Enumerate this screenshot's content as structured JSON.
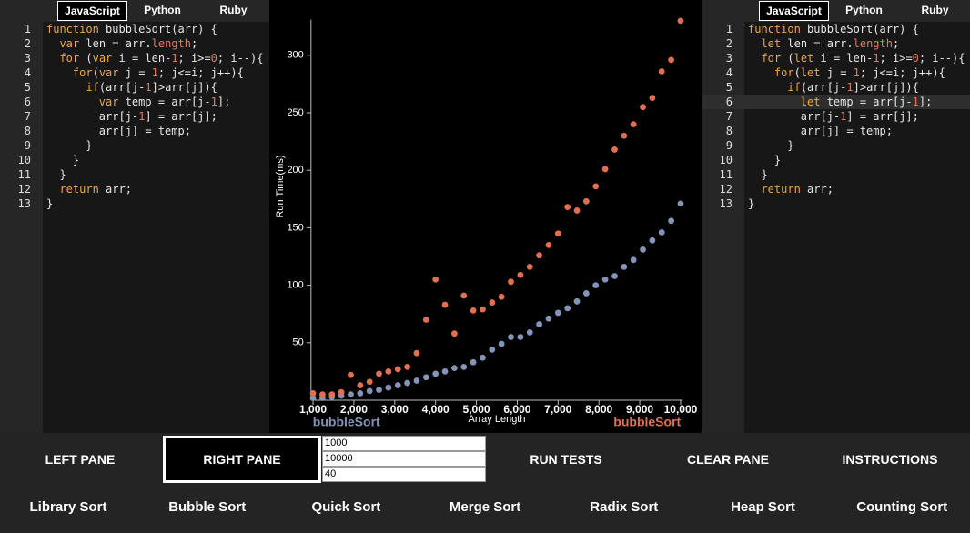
{
  "left_pane": {
    "tabs": [
      "JavaScript",
      "Python",
      "Ruby"
    ],
    "line_numbers": [
      1,
      2,
      3,
      4,
      5,
      6,
      7,
      8,
      9,
      10,
      11,
      12,
      13
    ],
    "code": [
      "function bubbleSort(arr) {",
      "  var len = arr.length;",
      "  for (var i = len-1; i>=0; i--){",
      "    for(var j = 1; j<=i; j++){",
      "      if(arr[j-1]>arr[j]){",
      "        var temp = arr[j-1];",
      "        arr[j-1] = arr[j];",
      "        arr[j] = temp;",
      "      }",
      "    }",
      "  }",
      "  return arr;",
      "}"
    ]
  },
  "chart_data": {
    "type": "scatter",
    "xlabel": "Array Length",
    "ylabel": "Run Time(ms)",
    "x": [
      1000,
      1231,
      1462,
      1692,
      1923,
      2154,
      2385,
      2615,
      2846,
      3077,
      3308,
      3538,
      3769,
      4000,
      4231,
      4462,
      4692,
      4923,
      5154,
      5385,
      5615,
      5846,
      6077,
      6308,
      6538,
      6769,
      7000,
      7231,
      7462,
      7692,
      7923,
      8154,
      8385,
      8615,
      8846,
      9077,
      9308,
      9538,
      9769,
      10000
    ],
    "series": [
      {
        "name": "bubbleSort",
        "color": "#8394b8",
        "values": [
          2,
          2,
          3,
          4,
          5,
          6,
          8,
          9,
          11,
          13,
          15,
          17,
          20,
          23,
          25,
          28,
          29,
          33,
          37,
          44,
          49,
          55,
          55,
          59,
          66,
          71,
          76,
          80,
          86,
          93,
          100,
          105,
          108,
          116,
          122,
          131,
          139,
          146,
          156,
          171
        ]
      },
      {
        "name": "bubbleSort",
        "color": "#e0704f",
        "values": [
          6,
          5,
          5,
          7,
          22,
          13,
          16,
          23,
          25,
          27,
          29,
          41,
          70,
          105,
          83,
          58,
          91,
          78,
          79,
          85,
          90,
          103,
          109,
          116,
          126,
          135,
          145,
          168,
          165,
          173,
          186,
          201,
          218,
          230,
          240,
          255,
          263,
          286,
          296,
          330
        ]
      }
    ],
    "xlim": [
      950,
      10050
    ],
    "ylim": [
      0,
      331
    ],
    "xticks": [
      {
        "value": 1000,
        "label": "1,000"
      },
      {
        "value": 2000,
        "label": "2,000"
      },
      {
        "value": 3000,
        "label": "3,000"
      },
      {
        "value": 4000,
        "label": "4,000"
      },
      {
        "value": 5000,
        "label": "5,000"
      },
      {
        "value": 6000,
        "label": "6,000"
      },
      {
        "value": 7000,
        "label": "7,000"
      },
      {
        "value": 8000,
        "label": "8,000"
      },
      {
        "value": 9000,
        "label": "9,000"
      },
      {
        "value": 10000,
        "label": "10,000"
      }
    ],
    "yticks": [
      50,
      100,
      150,
      200,
      250,
      300
    ]
  },
  "right_pane": {
    "tabs": [
      "JavaScript",
      "Python",
      "Ruby"
    ],
    "line_numbers": [
      1,
      2,
      3,
      4,
      5,
      6,
      7,
      8,
      9,
      10,
      11,
      12,
      13
    ],
    "code": [
      "function bubbleSort(arr) {",
      "  let len = arr.length;",
      "  for (let i = len-1; i>=0; i--){",
      "    for(let j = 1; j<=i; j++){",
      "      if(arr[j-1]>arr[j]){",
      "        let temp = arr[j-1];",
      "        arr[j-1] = arr[j];",
      "        arr[j] = temp;",
      "      }",
      "    }",
      "  }",
      "  return arr;",
      "}"
    ]
  },
  "controls": {
    "pane_buttons": [
      "LEFT PANE",
      "RIGHT PANE"
    ],
    "inputs": [
      1000,
      10000,
      40
    ],
    "actions": [
      "RUN TESTS",
      "CLEAR PANE",
      "INSTRUCTIONS"
    ],
    "sorts": [
      "Library Sort",
      "Bubble Sort",
      "Quick Sort",
      "Merge Sort",
      "Radix Sort",
      "Heap Sort",
      "Counting Sort"
    ]
  }
}
